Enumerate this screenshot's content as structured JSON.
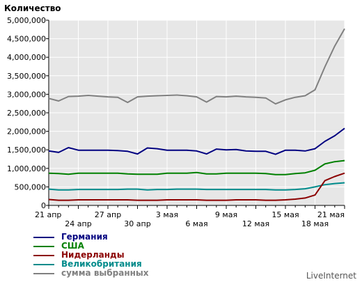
{
  "chart_data": {
    "type": "line",
    "ylabel": "Количество",
    "ylim": [
      0,
      5000000
    ],
    "y_ticks": [
      "5,000,000",
      "4,500,000",
      "4,000,000",
      "3,500,000",
      "3,000,000",
      "2,500,000",
      "2,000,000",
      "1,500,000",
      "1,000,000",
      "500,000",
      "0"
    ],
    "y_tick_values": [
      5000000,
      4500000,
      4000000,
      3500000,
      3000000,
      2500000,
      2000000,
      1500000,
      1000000,
      500000,
      0
    ],
    "x_dates": [
      "21 апр",
      "22 апр",
      "23 апр",
      "24 апр",
      "25 апр",
      "26 апр",
      "27 апр",
      "28 апр",
      "29 апр",
      "30 апр",
      "1 мая",
      "2 мая",
      "3 мая",
      "4 мая",
      "5 мая",
      "6 мая",
      "7 мая",
      "8 мая",
      "9 мая",
      "10 мая",
      "11 мая",
      "12 мая",
      "13 мая",
      "14 мая",
      "15 мая",
      "16 мая",
      "17 мая",
      "18 мая",
      "19 мая",
      "20 мая",
      "21 мая"
    ],
    "x_tick_labels_row1": [
      {
        "index": 0,
        "label": "21 апр"
      },
      {
        "index": 6,
        "label": "27 апр"
      },
      {
        "index": 12,
        "label": "3 мая"
      },
      {
        "index": 18,
        "label": "9 мая"
      },
      {
        "index": 24,
        "label": "15 мая"
      },
      {
        "index": 30,
        "label": "21 мая"
      }
    ],
    "x_tick_labels_row2": [
      {
        "index": 3,
        "label": "24 апр"
      },
      {
        "index": 9,
        "label": "30 апр"
      },
      {
        "index": 15,
        "label": "6 мая"
      },
      {
        "index": 21,
        "label": "12 мая"
      },
      {
        "index": 27,
        "label": "18 мая"
      }
    ],
    "grid": true,
    "legend_position": "bottom-left",
    "series": [
      {
        "name": "Германия",
        "color": "#000080",
        "values": [
          1470000,
          1430000,
          1560000,
          1490000,
          1490000,
          1490000,
          1490000,
          1480000,
          1460000,
          1390000,
          1550000,
          1530000,
          1490000,
          1490000,
          1490000,
          1470000,
          1390000,
          1520000,
          1500000,
          1510000,
          1470000,
          1460000,
          1460000,
          1380000,
          1490000,
          1490000,
          1470000,
          1530000,
          1730000,
          1880000,
          2080000
        ]
      },
      {
        "name": "США",
        "color": "#008000",
        "values": [
          870000,
          860000,
          840000,
          870000,
          870000,
          870000,
          870000,
          870000,
          850000,
          840000,
          840000,
          840000,
          870000,
          870000,
          870000,
          890000,
          850000,
          850000,
          870000,
          870000,
          870000,
          870000,
          860000,
          830000,
          830000,
          860000,
          880000,
          950000,
          1120000,
          1180000,
          1210000
        ]
      },
      {
        "name": "Нидерланды",
        "color": "#8b0000",
        "values": [
          160000,
          140000,
          140000,
          150000,
          150000,
          150000,
          150000,
          150000,
          150000,
          140000,
          140000,
          140000,
          150000,
          150000,
          150000,
          150000,
          140000,
          140000,
          140000,
          150000,
          150000,
          150000,
          140000,
          140000,
          150000,
          170000,
          200000,
          280000,
          670000,
          780000,
          870000
        ]
      },
      {
        "name": "Великобритания",
        "color": "#008b8b",
        "values": [
          440000,
          420000,
          420000,
          430000,
          430000,
          430000,
          430000,
          430000,
          440000,
          440000,
          420000,
          430000,
          430000,
          440000,
          440000,
          440000,
          430000,
          430000,
          430000,
          430000,
          430000,
          430000,
          430000,
          420000,
          420000,
          430000,
          450000,
          500000,
          560000,
          590000,
          610000
        ]
      },
      {
        "name": "сумма выбранных",
        "color": "#808080",
        "values": [
          2890000,
          2820000,
          2940000,
          2950000,
          2970000,
          2950000,
          2930000,
          2920000,
          2780000,
          2930000,
          2950000,
          2960000,
          2970000,
          2980000,
          2960000,
          2930000,
          2790000,
          2940000,
          2930000,
          2950000,
          2930000,
          2920000,
          2900000,
          2740000,
          2850000,
          2920000,
          2960000,
          3120000,
          3740000,
          4300000,
          4770000
        ]
      }
    ]
  },
  "brand": "LiveInternet"
}
